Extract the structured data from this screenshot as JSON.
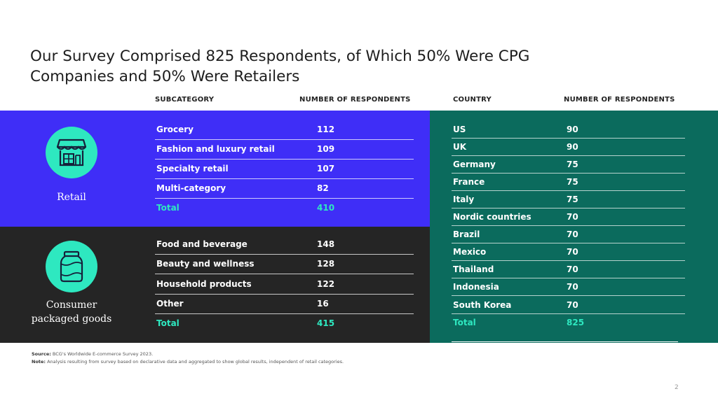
{
  "title": "Our Survey Comprised 825 Respondents, of Which 50% Were CPG Companies and 50% Were Retailers",
  "headers": {
    "subcategory": "SUBCATEGORY",
    "respondents_left": "NUMBER OF RESPONDENTS",
    "country": "COUNTRY",
    "respondents_right": "NUMBER OF RESPONDENTS"
  },
  "retail": {
    "label": "Retail",
    "icon": "storefront-icon",
    "rows": [
      {
        "name": "Grocery",
        "value": "112"
      },
      {
        "name": "Fashion and luxury retail",
        "value": "109"
      },
      {
        "name": "Specialty retail",
        "value": "107"
      },
      {
        "name": "Multi-category",
        "value": "82"
      }
    ],
    "total": {
      "name": "Total",
      "value": "410"
    }
  },
  "cpg": {
    "label_line1": "Consumer",
    "label_line2": "packaged goods",
    "icon": "jar-icon",
    "rows": [
      {
        "name": "Food and beverage",
        "value": "148"
      },
      {
        "name": "Beauty and wellness",
        "value": "128"
      },
      {
        "name": "Household products",
        "value": "122"
      },
      {
        "name": "Other",
        "value": "16"
      }
    ],
    "total": {
      "name": "Total",
      "value": "415"
    }
  },
  "countries": {
    "rows": [
      {
        "name": "US",
        "value": "90"
      },
      {
        "name": "UK",
        "value": "90"
      },
      {
        "name": "Germany",
        "value": "75"
      },
      {
        "name": "France",
        "value": "75"
      },
      {
        "name": "Italy",
        "value": "75"
      },
      {
        "name": "Nordic countries",
        "value": "70"
      },
      {
        "name": "Brazil",
        "value": "70"
      },
      {
        "name": "Mexico",
        "value": "70"
      },
      {
        "name": "Thailand",
        "value": "70"
      },
      {
        "name": "Indonesia",
        "value": "70"
      },
      {
        "name": "South Korea",
        "value": "70"
      }
    ],
    "total": {
      "name": "Total",
      "value": "825"
    }
  },
  "footer": {
    "source_label": "Source:",
    "source_text": "BCG's Worldwide E-commerce Survey 2023.",
    "note_label": "Note:",
    "note_text": "Analysis resulting from survey based on declarative data and aggregated to show global results, independent of retail categories.",
    "page_number": "2"
  },
  "colors": {
    "retail_band": "#3f2ef7",
    "cpg_band": "#252525",
    "country_band": "#0b6b5d",
    "accent": "#2ee8c0"
  }
}
